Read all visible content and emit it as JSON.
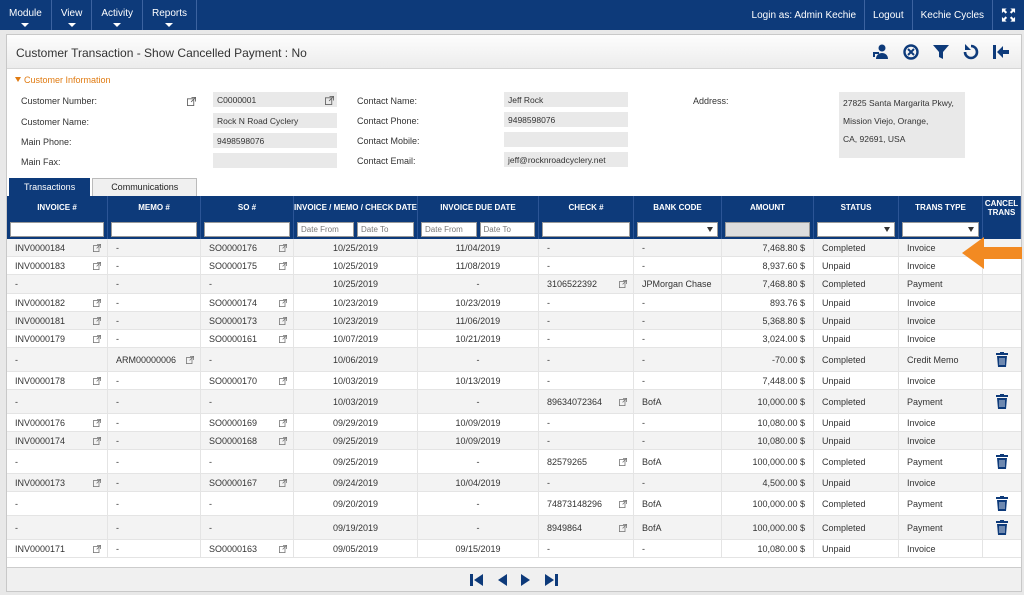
{
  "nav": {
    "menus": [
      "Module",
      "View",
      "Activity",
      "Reports"
    ],
    "login": "Login as: Admin Kechie",
    "logout": "Logout",
    "company": "Kechie Cycles"
  },
  "page": {
    "title": "Customer Transaction - Show Cancelled Payment : No"
  },
  "customer_info": {
    "section_label": "Customer Information",
    "customer_number_label": "Customer Number:",
    "customer_number": "C0000001",
    "customer_name_label": "Customer Name:",
    "customer_name": "Rock N Road Cyclery",
    "main_phone_label": "Main Phone:",
    "main_phone": "9498598076",
    "main_fax_label": "Main Fax:",
    "main_fax": "",
    "contact_name_label": "Contact Name:",
    "contact_name": "Jeff Rock",
    "contact_phone_label": "Contact Phone:",
    "contact_phone": "9498598076",
    "contact_mobile_label": "Contact Mobile:",
    "contact_mobile": "",
    "contact_email_label": "Contact Email:",
    "contact_email": "jeff@rocknroadcyclery.net",
    "address_label": "Address:",
    "address_line1": "27825 Santa Margarita Pkwy,",
    "address_line2": "Mission Viejo, Orange,",
    "address_line3": "CA, 92691, USA"
  },
  "tabs": [
    "Transactions",
    "Communications"
  ],
  "columns": [
    "INVOICE #",
    "MEMO #",
    "SO #",
    "INVOICE / MEMO / CHECK DATE",
    "INVOICE DUE DATE",
    "CHECK #",
    "BANK CODE",
    "AMOUNT",
    "STATUS",
    "TRANS TYPE",
    "CANCEL TRANS"
  ],
  "filters": {
    "date_from": "Date From",
    "date_to": "Date To",
    "due_from": "Date From",
    "due_to": "Date To"
  },
  "rows": [
    {
      "invoice": "INV0000184",
      "memo": "-",
      "so": "SO0000176",
      "date": "10/25/2019",
      "due": "11/04/2019",
      "check": "-",
      "bank": "-",
      "amount": "7,468.80 $",
      "status": "Completed",
      "type": "Invoice",
      "cancel": false
    },
    {
      "invoice": "INV0000183",
      "memo": "-",
      "so": "SO0000175",
      "date": "10/25/2019",
      "due": "11/08/2019",
      "check": "-",
      "bank": "-",
      "amount": "8,937.60 $",
      "status": "Unpaid",
      "type": "Invoice",
      "cancel": false
    },
    {
      "invoice": "-",
      "memo": "-",
      "so": "-",
      "date": "10/25/2019",
      "due": "-",
      "check": "3106522392",
      "bank": "JPMorgan Chase",
      "amount": "7,468.80 $",
      "status": "Completed",
      "type": "Payment",
      "cancel": false
    },
    {
      "invoice": "INV0000182",
      "memo": "-",
      "so": "SO0000174",
      "date": "10/23/2019",
      "due": "10/23/2019",
      "check": "-",
      "bank": "-",
      "amount": "893.76 $",
      "status": "Unpaid",
      "type": "Invoice",
      "cancel": false
    },
    {
      "invoice": "INV0000181",
      "memo": "-",
      "so": "SO0000173",
      "date": "10/23/2019",
      "due": "11/06/2019",
      "check": "-",
      "bank": "-",
      "amount": "5,368.80 $",
      "status": "Unpaid",
      "type": "Invoice",
      "cancel": false
    },
    {
      "invoice": "INV0000179",
      "memo": "-",
      "so": "SO0000161",
      "date": "10/07/2019",
      "due": "10/21/2019",
      "check": "-",
      "bank": "-",
      "amount": "3,024.00 $",
      "status": "Unpaid",
      "type": "Invoice",
      "cancel": false
    },
    {
      "invoice": "-",
      "memo": "ARM00000006",
      "so": "-",
      "date": "10/06/2019",
      "due": "-",
      "check": "-",
      "bank": "-",
      "amount": "-70.00 $",
      "status": "Completed",
      "type": "Credit Memo",
      "cancel": true
    },
    {
      "invoice": "INV0000178",
      "memo": "-",
      "so": "SO0000170",
      "date": "10/03/2019",
      "due": "10/13/2019",
      "check": "-",
      "bank": "-",
      "amount": "7,448.00 $",
      "status": "Unpaid",
      "type": "Invoice",
      "cancel": false
    },
    {
      "invoice": "-",
      "memo": "-",
      "so": "-",
      "date": "10/03/2019",
      "due": "-",
      "check": "89634072364",
      "bank": "BofA",
      "amount": "10,000.00 $",
      "status": "Completed",
      "type": "Payment",
      "cancel": true
    },
    {
      "invoice": "INV0000176",
      "memo": "-",
      "so": "SO0000169",
      "date": "09/29/2019",
      "due": "10/09/2019",
      "check": "-",
      "bank": "-",
      "amount": "10,080.00 $",
      "status": "Unpaid",
      "type": "Invoice",
      "cancel": false
    },
    {
      "invoice": "INV0000174",
      "memo": "-",
      "so": "SO0000168",
      "date": "09/25/2019",
      "due": "10/09/2019",
      "check": "-",
      "bank": "-",
      "amount": "10,080.00 $",
      "status": "Unpaid",
      "type": "Invoice",
      "cancel": false
    },
    {
      "invoice": "-",
      "memo": "-",
      "so": "-",
      "date": "09/25/2019",
      "due": "-",
      "check": "82579265",
      "bank": "BofA",
      "amount": "100,000.00 $",
      "status": "Completed",
      "type": "Payment",
      "cancel": true
    },
    {
      "invoice": "INV0000173",
      "memo": "-",
      "so": "SO0000167",
      "date": "09/24/2019",
      "due": "10/04/2019",
      "check": "-",
      "bank": "-",
      "amount": "4,500.00 $",
      "status": "Unpaid",
      "type": "Invoice",
      "cancel": false
    },
    {
      "invoice": "-",
      "memo": "-",
      "so": "-",
      "date": "09/20/2019",
      "due": "-",
      "check": "74873148296",
      "bank": "BofA",
      "amount": "100,000.00 $",
      "status": "Completed",
      "type": "Payment",
      "cancel": true
    },
    {
      "invoice": "-",
      "memo": "-",
      "so": "-",
      "date": "09/19/2019",
      "due": "-",
      "check": "8949864",
      "bank": "BofA",
      "amount": "100,000.00 $",
      "status": "Completed",
      "type": "Payment",
      "cancel": true
    },
    {
      "invoice": "INV0000171",
      "memo": "-",
      "so": "SO0000163",
      "date": "09/05/2019",
      "due": "09/15/2019",
      "check": "-",
      "bank": "-",
      "amount": "10,080.00 $",
      "status": "Unpaid",
      "type": "Invoice",
      "cancel": false
    }
  ],
  "colors": {
    "nav": "#0d3a7a",
    "accent": "#e07b12"
  }
}
